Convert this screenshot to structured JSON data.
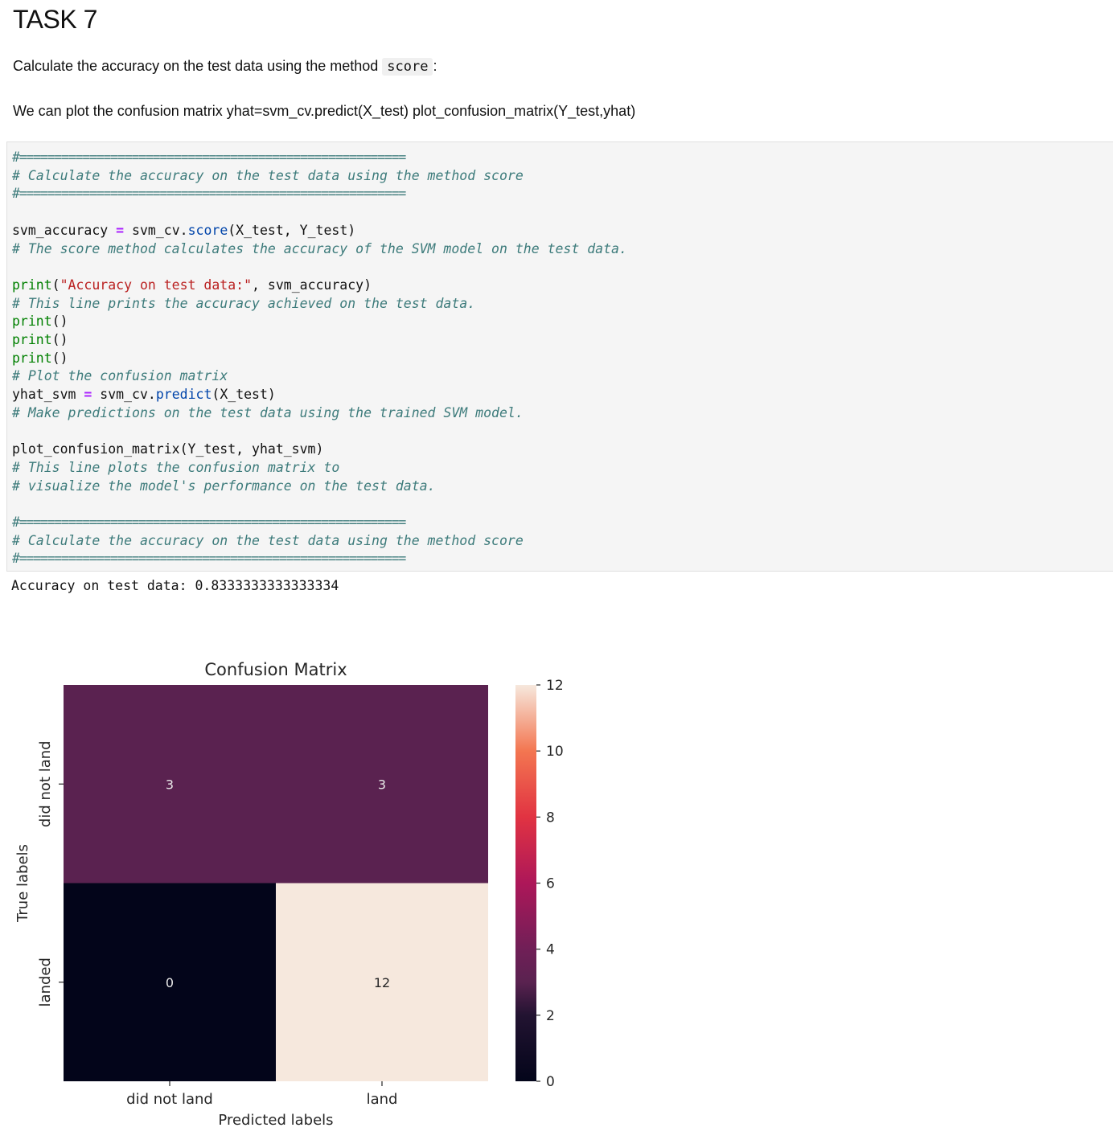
{
  "heading": "TASK 7",
  "paragraph1": {
    "before": "Calculate the accuracy on the test data using the method ",
    "code": "score",
    "after": ":"
  },
  "paragraph2": "We can plot the confusion matrix yhat=svm_cv.predict(X_test) plot_confusion_matrix(Y_test,yhat)",
  "code_lines": {
    "rule": "#=======================================================",
    "comment_header": "# Calculate the accuracy on the test data using the method score",
    "l_acc_var": "svm_accuracy",
    "l_acc_eq": " = ",
    "l_acc_obj": "svm_cv.",
    "l_acc_method": "score",
    "l_acc_args": "(X_test, Y_test)",
    "c_score": "# The score method calculates the accuracy of the SVM model on the test data.",
    "l_print_fn": "print",
    "l_print_open": "(",
    "l_print_str": "\"Accuracy on test data:\"",
    "l_print_rest": ", svm_accuracy)",
    "c_print": "# This line prints the accuracy achieved on the test data.",
    "l_empty_print_fn": "print",
    "l_empty_print_args": "()",
    "c_plot": "# Plot the confusion matrix",
    "l_yhat_var": "yhat_svm",
    "l_yhat_obj": "svm_cv.",
    "l_yhat_method": "predict",
    "l_yhat_args": "(X_test)",
    "c_predict": "# Make predictions on the test data using the trained SVM model.",
    "l_plotcm": "plot_confusion_matrix(Y_test, yhat_svm)",
    "c_plotcm1": "# This line plots the confusion matrix to",
    "c_plotcm2": "# visualize the model's performance on the test data."
  },
  "output": "Accuracy on test data: 0.8333333333333334",
  "chart_data": {
    "type": "heatmap",
    "title": "Confusion Matrix",
    "xlabel": "Predicted labels",
    "ylabel": "True labels",
    "x_categories": [
      "did not land",
      "land"
    ],
    "y_categories": [
      "did not land",
      "landed"
    ],
    "values": [
      [
        3,
        3
      ],
      [
        0,
        12
      ]
    ],
    "colormap": "rocket",
    "colorbar": {
      "range": [
        0,
        12
      ],
      "ticks": [
        0,
        2,
        4,
        6,
        8,
        10,
        12
      ]
    },
    "colors": {
      "0": "#03051a",
      "2": "#221331",
      "3": "#5a2250",
      "4": "#701f57",
      "6": "#ad1759",
      "8": "#e13342",
      "10": "#f37651",
      "12": "#f6e8dd"
    }
  }
}
